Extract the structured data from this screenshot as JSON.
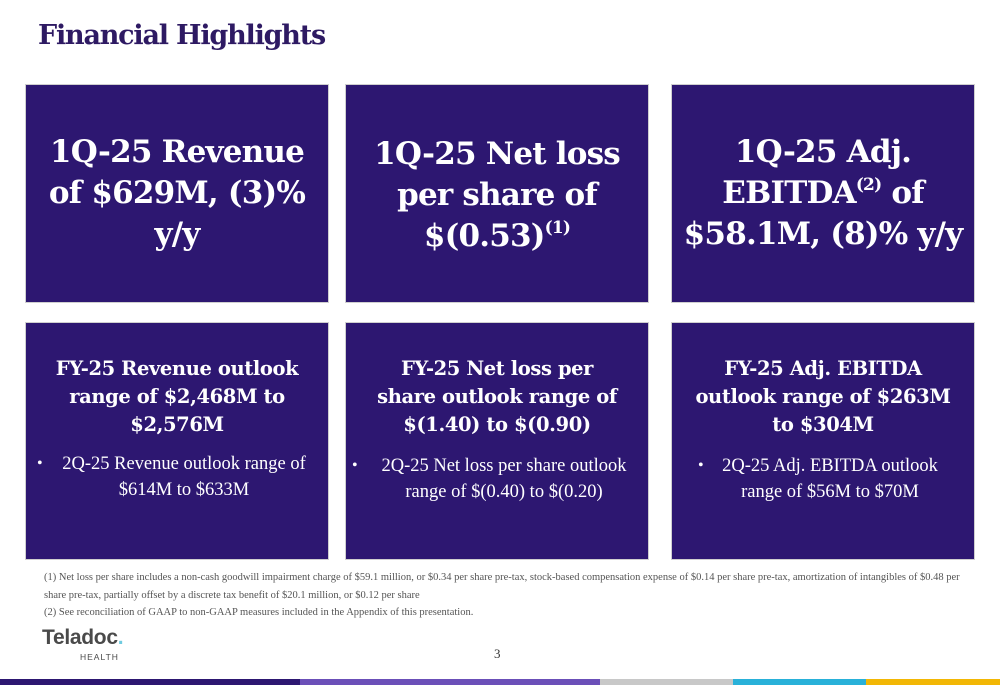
{
  "page": {
    "title": "Financial Highlights",
    "page_number": "3"
  },
  "cards_top": [
    {
      "text": "1Q-25 Revenue of $629M, (3)% y/y"
    },
    {
      "text_before": "1Q-25 Net loss per share of $(0.53)",
      "sup": "(1)"
    },
    {
      "line1": "1Q-25 Adj.",
      "line2_before": "EBITDA",
      "sup": "(2)",
      "line2_after": " of",
      "line3": "$58.1M, (8)% y/y"
    }
  ],
  "cards_bottom": [
    {
      "headline": "FY-25 Revenue outlook range of $2,468M to $2,576M",
      "bullet": "2Q-25 Revenue outlook range of $614M to $633M"
    },
    {
      "headline": "FY-25 Net loss per share outlook range of $(1.40) to $(0.90)",
      "bullet": "2Q-25 Net loss per share outlook range of $(0.40) to $(0.20)"
    },
    {
      "headline": "FY-25 Adj. EBITDA outlook range of $263M to $304M",
      "bullet": "2Q-25 Adj. EBITDA outlook range of $56M to $70M"
    }
  ],
  "footnotes": [
    "(1) Net loss per share includes a non-cash goodwill impairment charge of $59.1 million, or $0.34 per share pre-tax, stock-based compensation expense of $0.14 per share pre-tax, amortization of intangibles of $0.48 per share pre-tax, partially offset by a discrete tax benefit of $20.1 million, or $0.12 per share",
    "(2) See reconciliation of GAAP to non-GAAP measures included in the Appendix of this presentation."
  ],
  "logo": {
    "name": "Teladoc",
    "mark": ".",
    "sub": "HEALTH"
  },
  "colors": {
    "card_background": "#2d1771",
    "title": "#2e1a63",
    "stripes": [
      "#2d1771",
      "#6b4fb8",
      "#c8c8c8",
      "#29b1d9",
      "#f2b705"
    ]
  }
}
